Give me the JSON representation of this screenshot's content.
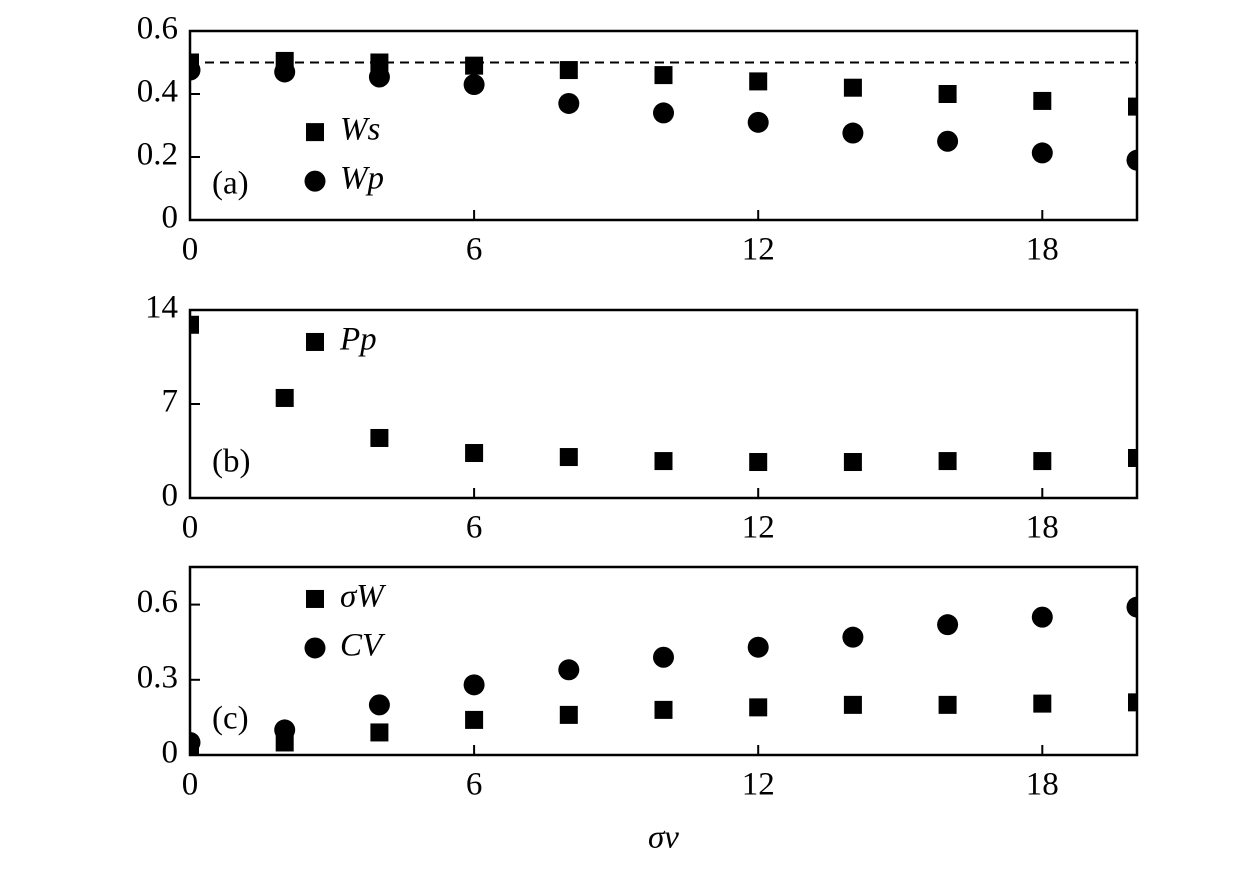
{
  "chart_data": [
    {
      "type": "scatter",
      "panel_label": "(a)",
      "legend": "center left",
      "x": [
        0,
        2,
        4,
        6,
        8,
        10,
        12,
        14,
        16,
        18,
        20
      ],
      "xlim": [
        0,
        20
      ],
      "xticks": [
        0,
        6,
        12,
        18
      ],
      "ylim": [
        0,
        0.6
      ],
      "yticks": [
        0,
        0.2,
        0.4,
        0.6
      ],
      "hline": 0.5,
      "series": [
        {
          "name": "Ws",
          "marker": "square",
          "color": "#000",
          "values": [
            0.5,
            0.505,
            0.5,
            0.49,
            0.476,
            0.46,
            0.44,
            0.42,
            0.4,
            0.378,
            0.36
          ]
        },
        {
          "name": "Wp",
          "marker": "circle",
          "color": "#000",
          "values": [
            0.476,
            0.47,
            0.454,
            0.43,
            0.37,
            0.34,
            0.31,
            0.276,
            0.25,
            0.213,
            0.19
          ]
        }
      ]
    },
    {
      "type": "scatter",
      "panel_label": "(b)",
      "legend": "upper left",
      "x": [
        0,
        2,
        4,
        6,
        8,
        10,
        12,
        14,
        16,
        18,
        20
      ],
      "xlim": [
        0,
        20
      ],
      "xticks": [
        0,
        6,
        12,
        18
      ],
      "ylim": [
        0,
        14
      ],
      "yticks": [
        0,
        7,
        14
      ],
      "series": [
        {
          "name": "Pp",
          "marker": "square",
          "color": "#000",
          "values": [
            12.9,
            7.45,
            4.47,
            3.35,
            3.05,
            2.75,
            2.68,
            2.68,
            2.75,
            2.75,
            2.98
          ]
        }
      ]
    },
    {
      "type": "scatter",
      "panel_label": "(c)",
      "legend": "upper left",
      "xlabel": "σν",
      "x": [
        0,
        2,
        4,
        6,
        8,
        10,
        12,
        14,
        16,
        18,
        20
      ],
      "xlim": [
        0,
        20
      ],
      "xticks": [
        0,
        6,
        12,
        18
      ],
      "ylim": [
        0,
        0.75
      ],
      "yticks": [
        0,
        0.3,
        0.6
      ],
      "series": [
        {
          "name": "σW",
          "marker": "square",
          "color": "#000",
          "values": [
            0.02,
            0.05,
            0.09,
            0.14,
            0.16,
            0.18,
            0.19,
            0.2,
            0.2,
            0.205,
            0.21
          ]
        },
        {
          "name": "CV",
          "marker": "circle",
          "color": "#000",
          "values": [
            0.05,
            0.1,
            0.2,
            0.28,
            0.34,
            0.39,
            0.43,
            0.47,
            0.52,
            0.55,
            0.59
          ]
        }
      ]
    }
  ]
}
